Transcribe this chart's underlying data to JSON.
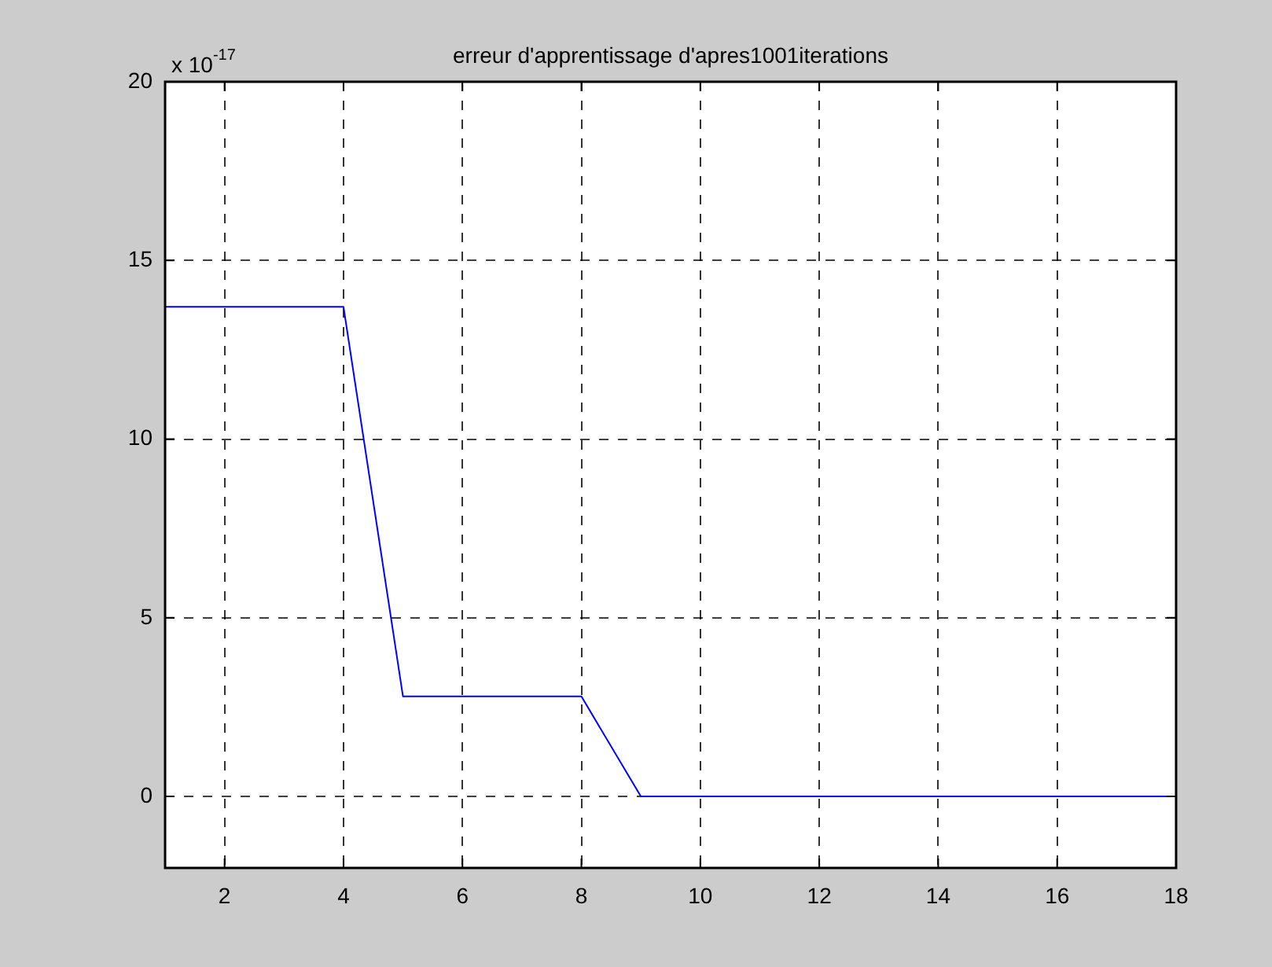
{
  "chart_data": {
    "type": "line",
    "title": "erreur d'apprentissage d'apres1001iterations",
    "x": [
      1,
      2,
      3,
      4,
      5,
      6,
      7,
      8,
      9,
      10,
      11,
      12,
      13,
      14,
      15,
      16,
      17,
      18
    ],
    "series": [
      {
        "color": "#0000ff",
        "values": [
          13.7,
          13.7,
          13.7,
          13.7,
          2.8,
          2.8,
          2.8,
          2.8,
          0,
          0,
          0,
          0,
          0,
          0,
          0,
          0,
          0,
          0
        ]
      }
    ],
    "xlim": [
      1,
      18
    ],
    "xticks": [
      2,
      4,
      6,
      8,
      10,
      12,
      14,
      16,
      18
    ],
    "ylim": [
      -2,
      20
    ],
    "yticks": [
      0,
      5,
      10,
      15,
      20
    ],
    "annotations": [
      "x 10$^{-17}$"
    ],
    "grid": true,
    "legend": false,
    "marker": "none",
    "line_style": "solid"
  }
}
